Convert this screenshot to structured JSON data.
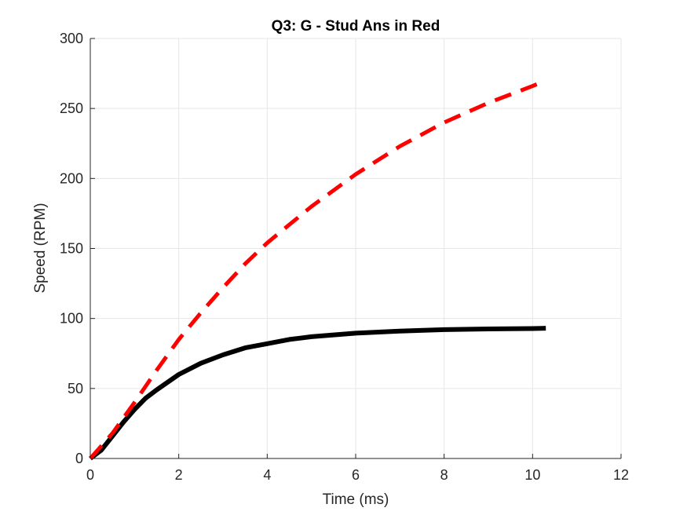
{
  "chart_data": {
    "type": "line",
    "title": "Q3: G - Stud Ans in Red",
    "xlabel": "Time (ms)",
    "ylabel": "Speed (RPM)",
    "xlim": [
      0,
      12
    ],
    "ylim": [
      0,
      300
    ],
    "xticks": [
      0,
      2,
      4,
      6,
      8,
      10,
      12
    ],
    "yticks": [
      0,
      50,
      100,
      150,
      200,
      250,
      300
    ],
    "grid": true,
    "series": [
      {
        "color": "#000000",
        "style": "solid",
        "x": [
          0,
          0.25,
          0.5,
          0.75,
          1,
          1.25,
          1.5,
          2,
          2.5,
          3,
          3.5,
          4,
          4.5,
          5,
          6,
          7,
          8,
          9,
          10,
          10.3
        ],
        "y": [
          0,
          6,
          16,
          26,
          35,
          43,
          49,
          60,
          68,
          74,
          79,
          82,
          85,
          87,
          89.5,
          91,
          92,
          92.5,
          92.8,
          93
        ]
      },
      {
        "color": "#ff0000",
        "style": "dashed",
        "x": [
          0,
          0.5,
          1,
          1.5,
          2,
          2.5,
          3,
          3.5,
          4,
          5,
          6,
          7,
          8,
          9,
          10,
          10.3
        ],
        "y": [
          0,
          18,
          40,
          63,
          85,
          104,
          122,
          139,
          154,
          180,
          203,
          223,
          240,
          254,
          266,
          270
        ]
      }
    ]
  }
}
